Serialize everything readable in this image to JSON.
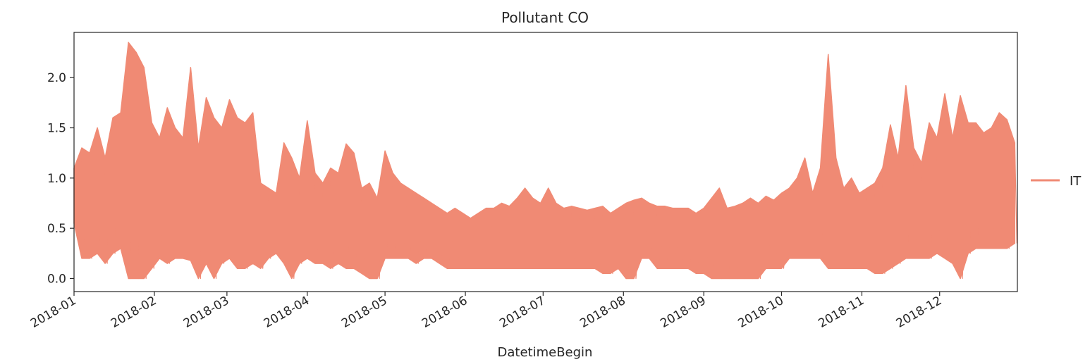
{
  "chart_data": {
    "type": "line",
    "title": "Pollutant CO",
    "xlabel": "DatetimeBegin",
    "ylabel": "",
    "x_range": [
      "2018-01-01",
      "2018-12-31"
    ],
    "x_ticks": [
      {
        "date": "2018-01-01",
        "label": "2018-01"
      },
      {
        "date": "2018-02-01",
        "label": "2018-02"
      },
      {
        "date": "2018-03-01",
        "label": "2018-03"
      },
      {
        "date": "2018-04-01",
        "label": "2018-04"
      },
      {
        "date": "2018-05-01",
        "label": "2018-05"
      },
      {
        "date": "2018-06-01",
        "label": "2018-06"
      },
      {
        "date": "2018-07-01",
        "label": "2018-07"
      },
      {
        "date": "2018-08-01",
        "label": "2018-08"
      },
      {
        "date": "2018-09-01",
        "label": "2018-09"
      },
      {
        "date": "2018-10-01",
        "label": "2018-10"
      },
      {
        "date": "2018-11-01",
        "label": "2018-11"
      },
      {
        "date": "2018-12-01",
        "label": "2018-12"
      }
    ],
    "ylim": [
      -0.13,
      2.45
    ],
    "y_ticks": [
      0.0,
      0.5,
      1.0,
      1.5,
      2.0
    ],
    "y_tick_labels": [
      "0.0",
      "0.5",
      "1.0",
      "1.5",
      "2.0"
    ],
    "grid": false,
    "legend_position": "right",
    "series": [
      {
        "name": "IT",
        "color": "#f08a74",
        "x": [
          "2018-01-01",
          "2018-01-04",
          "2018-01-07",
          "2018-01-10",
          "2018-01-13",
          "2018-01-16",
          "2018-01-19",
          "2018-01-22",
          "2018-01-25",
          "2018-01-28",
          "2018-01-31",
          "2018-02-03",
          "2018-02-06",
          "2018-02-09",
          "2018-02-12",
          "2018-02-15",
          "2018-02-18",
          "2018-02-21",
          "2018-02-24",
          "2018-02-27",
          "2018-03-02",
          "2018-03-05",
          "2018-03-08",
          "2018-03-11",
          "2018-03-14",
          "2018-03-17",
          "2018-03-20",
          "2018-03-23",
          "2018-03-26",
          "2018-03-29",
          "2018-04-01",
          "2018-04-04",
          "2018-04-07",
          "2018-04-10",
          "2018-04-13",
          "2018-04-16",
          "2018-04-19",
          "2018-04-22",
          "2018-04-25",
          "2018-04-28",
          "2018-05-01",
          "2018-05-04",
          "2018-05-07",
          "2018-05-10",
          "2018-05-13",
          "2018-05-16",
          "2018-05-19",
          "2018-05-22",
          "2018-05-25",
          "2018-05-28",
          "2018-05-31",
          "2018-06-03",
          "2018-06-06",
          "2018-06-09",
          "2018-06-12",
          "2018-06-15",
          "2018-06-18",
          "2018-06-21",
          "2018-06-24",
          "2018-06-27",
          "2018-06-30",
          "2018-07-03",
          "2018-07-06",
          "2018-07-09",
          "2018-07-12",
          "2018-07-15",
          "2018-07-18",
          "2018-07-21",
          "2018-07-24",
          "2018-07-27",
          "2018-07-30",
          "2018-08-02",
          "2018-08-05",
          "2018-08-08",
          "2018-08-11",
          "2018-08-14",
          "2018-08-17",
          "2018-08-20",
          "2018-08-23",
          "2018-08-26",
          "2018-08-29",
          "2018-09-01",
          "2018-09-04",
          "2018-09-07",
          "2018-09-10",
          "2018-09-13",
          "2018-09-16",
          "2018-09-19",
          "2018-09-22",
          "2018-09-25",
          "2018-09-28",
          "2018-10-01",
          "2018-10-04",
          "2018-10-07",
          "2018-10-10",
          "2018-10-13",
          "2018-10-16",
          "2018-10-19",
          "2018-10-22",
          "2018-10-25",
          "2018-10-28",
          "2018-10-31",
          "2018-11-03",
          "2018-11-06",
          "2018-11-09",
          "2018-11-12",
          "2018-11-15",
          "2018-11-18",
          "2018-11-21",
          "2018-11-24",
          "2018-11-27",
          "2018-11-30",
          "2018-12-03",
          "2018-12-06",
          "2018-12-09",
          "2018-12-12",
          "2018-12-15",
          "2018-12-18",
          "2018-12-21",
          "2018-12-24",
          "2018-12-27",
          "2018-12-30"
        ],
        "max": [
          1.1,
          1.3,
          1.25,
          1.5,
          1.2,
          1.6,
          1.65,
          2.35,
          2.25,
          2.1,
          1.55,
          1.4,
          1.7,
          1.5,
          1.4,
          2.1,
          1.3,
          1.8,
          1.6,
          1.5,
          1.78,
          1.6,
          1.55,
          1.65,
          0.95,
          0.9,
          0.85,
          1.35,
          1.2,
          1.0,
          1.57,
          1.05,
          0.95,
          1.1,
          1.05,
          1.34,
          1.25,
          0.9,
          0.95,
          0.8,
          1.27,
          1.05,
          0.95,
          0.9,
          0.85,
          0.8,
          0.75,
          0.7,
          0.65,
          0.7,
          0.65,
          0.6,
          0.65,
          0.7,
          0.7,
          0.75,
          0.72,
          0.8,
          0.9,
          0.8,
          0.75,
          0.9,
          0.75,
          0.7,
          0.72,
          0.7,
          0.68,
          0.7,
          0.72,
          0.65,
          0.7,
          0.75,
          0.78,
          0.8,
          0.75,
          0.72,
          0.72,
          0.7,
          0.7,
          0.7,
          0.65,
          0.7,
          0.8,
          0.9,
          0.7,
          0.72,
          0.75,
          0.8,
          0.75,
          0.82,
          0.78,
          0.85,
          0.9,
          1.0,
          1.2,
          0.85,
          1.1,
          2.23,
          1.2,
          0.9,
          1.0,
          0.85,
          0.9,
          0.95,
          1.1,
          1.53,
          1.2,
          1.92,
          1.3,
          1.15,
          1.55,
          1.4,
          1.84,
          1.4,
          1.82,
          1.55,
          1.55,
          1.45,
          1.5,
          1.65,
          1.58,
          1.35
        ],
        "min": [
          0.55,
          0.2,
          0.2,
          0.25,
          0.15,
          0.25,
          0.3,
          0.0,
          0.0,
          0.0,
          0.1,
          0.2,
          0.15,
          0.2,
          0.2,
          0.18,
          0.0,
          0.15,
          0.0,
          0.15,
          0.2,
          0.1,
          0.1,
          0.15,
          0.1,
          0.2,
          0.25,
          0.15,
          0.0,
          0.15,
          0.2,
          0.15,
          0.15,
          0.1,
          0.15,
          0.1,
          0.1,
          0.05,
          0.0,
          0.0,
          0.2,
          0.2,
          0.2,
          0.2,
          0.15,
          0.2,
          0.2,
          0.15,
          0.1,
          0.1,
          0.1,
          0.1,
          0.1,
          0.1,
          0.1,
          0.1,
          0.1,
          0.1,
          0.1,
          0.1,
          0.1,
          0.1,
          0.1,
          0.1,
          0.1,
          0.1,
          0.1,
          0.1,
          0.05,
          0.05,
          0.1,
          0.0,
          0.0,
          0.2,
          0.2,
          0.1,
          0.1,
          0.1,
          0.1,
          0.1,
          0.05,
          0.05,
          0.0,
          0.0,
          0.0,
          0.0,
          0.0,
          0.0,
          0.0,
          0.1,
          0.1,
          0.1,
          0.2,
          0.2,
          0.2,
          0.2,
          0.2,
          0.1,
          0.1,
          0.1,
          0.1,
          0.1,
          0.1,
          0.05,
          0.05,
          0.1,
          0.15,
          0.2,
          0.2,
          0.2,
          0.2,
          0.25,
          0.2,
          0.15,
          0.0,
          0.25,
          0.3,
          0.3,
          0.3,
          0.3,
          0.3,
          0.35
        ]
      }
    ]
  }
}
